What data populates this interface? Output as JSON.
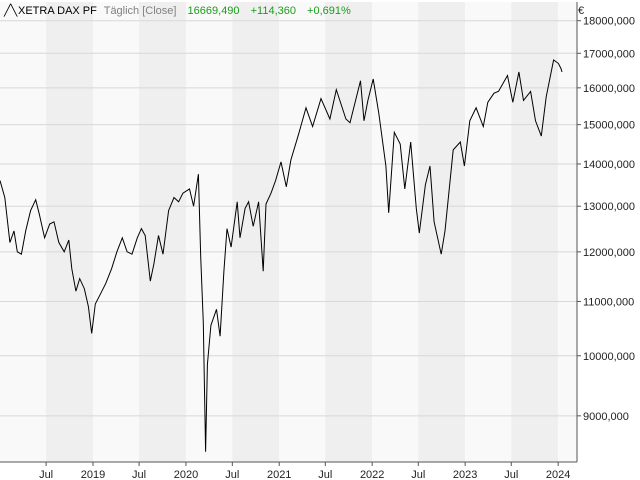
{
  "header": {
    "instrument": "XETRA DAX PF",
    "interval": "Täglich [Close]",
    "last": "16669,490",
    "change_abs": "+114,360",
    "change_pct": "+0,691%"
  },
  "colors": {
    "up": "#1a9c1a",
    "label_gray": "#808080",
    "line": "#000000",
    "band_light": "#f9f9f9",
    "band_dark": "#efefef",
    "grid": "#d8d8d8"
  },
  "chart_data": {
    "type": "line",
    "currency_label": "€",
    "y_scale": "log",
    "ylim": [
      8300,
      18600
    ],
    "y_ticks": [
      {
        "value": 9000,
        "label": "9000,000"
      },
      {
        "value": 10000,
        "label": "10000,000"
      },
      {
        "value": 11000,
        "label": "11000,000"
      },
      {
        "value": 12000,
        "label": "12000,000"
      },
      {
        "value": 13000,
        "label": "13000,000"
      },
      {
        "value": 14000,
        "label": "14000,000"
      },
      {
        "value": 15000,
        "label": "15000,000"
      },
      {
        "value": 16000,
        "label": "16000,000"
      },
      {
        "value": 17000,
        "label": "17000,000"
      },
      {
        "value": 18000,
        "label": "18000,000"
      }
    ],
    "x_range": [
      "2018-01-01",
      "2024-03-15"
    ],
    "x_ticks": [
      {
        "date": "2018-07-01",
        "label": "Jul"
      },
      {
        "date": "2019-01-01",
        "label": "2019"
      },
      {
        "date": "2019-07-01",
        "label": "Jul"
      },
      {
        "date": "2020-01-01",
        "label": "2020"
      },
      {
        "date": "2020-07-01",
        "label": "Jul"
      },
      {
        "date": "2021-01-01",
        "label": "2021"
      },
      {
        "date": "2021-07-01",
        "label": "Jul"
      },
      {
        "date": "2022-01-01",
        "label": "2022"
      },
      {
        "date": "2022-07-01",
        "label": "Jul"
      },
      {
        "date": "2023-01-01",
        "label": "2023"
      },
      {
        "date": "2023-07-01",
        "label": "Jul"
      },
      {
        "date": "2024-01-01",
        "label": "2024"
      }
    ],
    "series": [
      {
        "values": [
          [
            "2018-01-01",
            13600
          ],
          [
            "2018-01-20",
            13200
          ],
          [
            "2018-02-09",
            12200
          ],
          [
            "2018-02-25",
            12450
          ],
          [
            "2018-03-10",
            12000
          ],
          [
            "2018-03-26",
            11950
          ],
          [
            "2018-04-12",
            12450
          ],
          [
            "2018-05-01",
            12900
          ],
          [
            "2018-05-21",
            13150
          ],
          [
            "2018-06-05",
            12800
          ],
          [
            "2018-06-25",
            12300
          ],
          [
            "2018-07-15",
            12600
          ],
          [
            "2018-08-01",
            12650
          ],
          [
            "2018-08-20",
            12200
          ],
          [
            "2018-09-10",
            12000
          ],
          [
            "2018-09-28",
            12250
          ],
          [
            "2018-10-10",
            11650
          ],
          [
            "2018-10-26",
            11200
          ],
          [
            "2018-11-10",
            11450
          ],
          [
            "2018-11-28",
            11250
          ],
          [
            "2018-12-14",
            10900
          ],
          [
            "2018-12-27",
            10400
          ],
          [
            "2019-01-10",
            10950
          ],
          [
            "2019-01-31",
            11150
          ],
          [
            "2019-02-20",
            11350
          ],
          [
            "2019-03-15",
            11650
          ],
          [
            "2019-04-05",
            12000
          ],
          [
            "2019-04-26",
            12300
          ],
          [
            "2019-05-15",
            12000
          ],
          [
            "2019-06-03",
            11950
          ],
          [
            "2019-06-24",
            12300
          ],
          [
            "2019-07-10",
            12500
          ],
          [
            "2019-07-25",
            12350
          ],
          [
            "2019-08-14",
            11400
          ],
          [
            "2019-08-28",
            11750
          ],
          [
            "2019-09-15",
            12350
          ],
          [
            "2019-10-03",
            11950
          ],
          [
            "2019-10-25",
            12900
          ],
          [
            "2019-11-15",
            13200
          ],
          [
            "2019-12-03",
            13100
          ],
          [
            "2019-12-20",
            13300
          ],
          [
            "2020-01-15",
            13400
          ],
          [
            "2020-01-31",
            13000
          ],
          [
            "2020-02-19",
            13750
          ],
          [
            "2020-02-28",
            11900
          ],
          [
            "2020-03-09",
            10600
          ],
          [
            "2020-03-18",
            8450
          ],
          [
            "2020-03-25",
            9850
          ],
          [
            "2020-04-08",
            10550
          ],
          [
            "2020-04-30",
            10850
          ],
          [
            "2020-05-14",
            10350
          ],
          [
            "2020-05-29",
            11600
          ],
          [
            "2020-06-10",
            12500
          ],
          [
            "2020-06-26",
            12100
          ],
          [
            "2020-07-20",
            13100
          ],
          [
            "2020-07-31",
            12300
          ],
          [
            "2020-08-20",
            12950
          ],
          [
            "2020-09-03",
            13100
          ],
          [
            "2020-09-21",
            12550
          ],
          [
            "2020-10-12",
            13100
          ],
          [
            "2020-10-30",
            11600
          ],
          [
            "2020-11-10",
            13050
          ],
          [
            "2020-11-30",
            13300
          ],
          [
            "2020-12-18",
            13600
          ],
          [
            "2021-01-08",
            14050
          ],
          [
            "2021-01-29",
            13450
          ],
          [
            "2021-02-16",
            14100
          ],
          [
            "2021-03-18",
            14750
          ],
          [
            "2021-04-16",
            15450
          ],
          [
            "2021-05-12",
            14950
          ],
          [
            "2021-06-14",
            15700
          ],
          [
            "2021-07-19",
            15150
          ],
          [
            "2021-08-13",
            15950
          ],
          [
            "2021-09-20",
            15150
          ],
          [
            "2021-10-06",
            15050
          ],
          [
            "2021-11-16",
            16200
          ],
          [
            "2021-11-30",
            15100
          ],
          [
            "2021-12-15",
            15650
          ],
          [
            "2022-01-05",
            16250
          ],
          [
            "2022-01-27",
            15300
          ],
          [
            "2022-02-24",
            13950
          ],
          [
            "2022-03-07",
            12850
          ],
          [
            "2022-03-29",
            14800
          ],
          [
            "2022-04-21",
            14500
          ],
          [
            "2022-05-09",
            13400
          ],
          [
            "2022-06-01",
            14550
          ],
          [
            "2022-06-23",
            12950
          ],
          [
            "2022-07-05",
            12400
          ],
          [
            "2022-07-29",
            13500
          ],
          [
            "2022-08-16",
            13950
          ],
          [
            "2022-09-01",
            12650
          ],
          [
            "2022-09-29",
            11950
          ],
          [
            "2022-10-14",
            12450
          ],
          [
            "2022-11-15",
            14350
          ],
          [
            "2022-12-13",
            14550
          ],
          [
            "2022-12-29",
            13950
          ],
          [
            "2023-01-19",
            15100
          ],
          [
            "2023-02-13",
            15450
          ],
          [
            "2023-03-13",
            14950
          ],
          [
            "2023-03-31",
            15600
          ],
          [
            "2023-04-24",
            15850
          ],
          [
            "2023-05-12",
            15900
          ],
          [
            "2023-06-16",
            16350
          ],
          [
            "2023-07-07",
            15600
          ],
          [
            "2023-07-31",
            16450
          ],
          [
            "2023-08-18",
            15650
          ],
          [
            "2023-09-15",
            15900
          ],
          [
            "2023-10-04",
            15100
          ],
          [
            "2023-10-27",
            14700
          ],
          [
            "2023-11-15",
            15750
          ],
          [
            "2023-12-14",
            16800
          ],
          [
            "2024-01-02",
            16700
          ],
          [
            "2024-01-12",
            16550
          ],
          [
            "2024-01-16",
            16450
          ]
        ]
      }
    ]
  }
}
